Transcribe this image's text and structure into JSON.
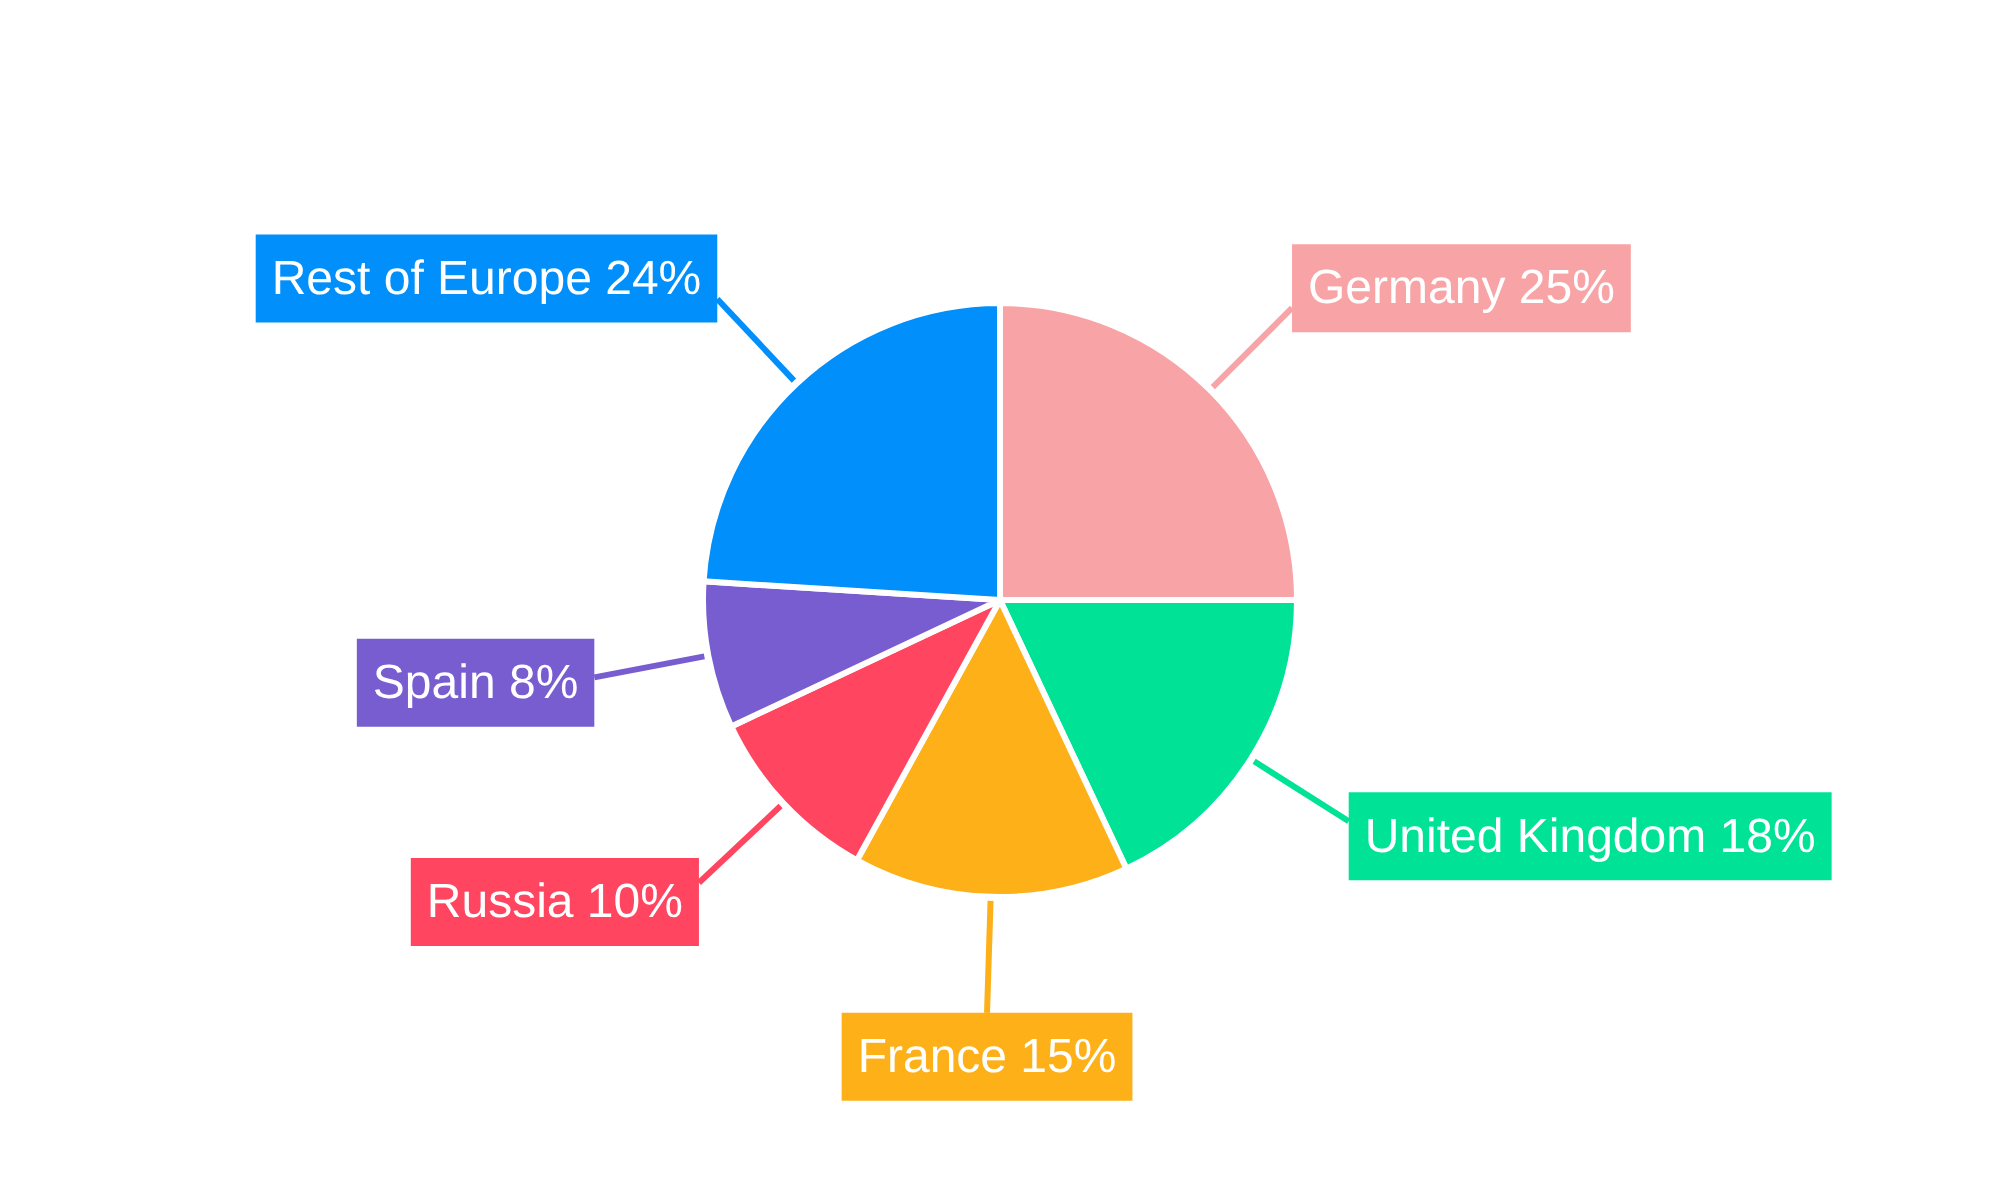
{
  "chart_data": {
    "type": "pie",
    "categories": [
      "Germany",
      "United Kingdom",
      "France",
      "Russia",
      "Spain",
      "Rest of Europe"
    ],
    "values": [
      25,
      18,
      15,
      10,
      8,
      24
    ],
    "colors": [
      "#f8a4a6",
      "#00e396",
      "#feb019",
      "#ff4560",
      "#775dd0",
      "#008ffb"
    ],
    "value_labels": [
      "25%",
      "18%",
      "15%",
      "10%",
      "8%",
      "24%"
    ]
  }
}
